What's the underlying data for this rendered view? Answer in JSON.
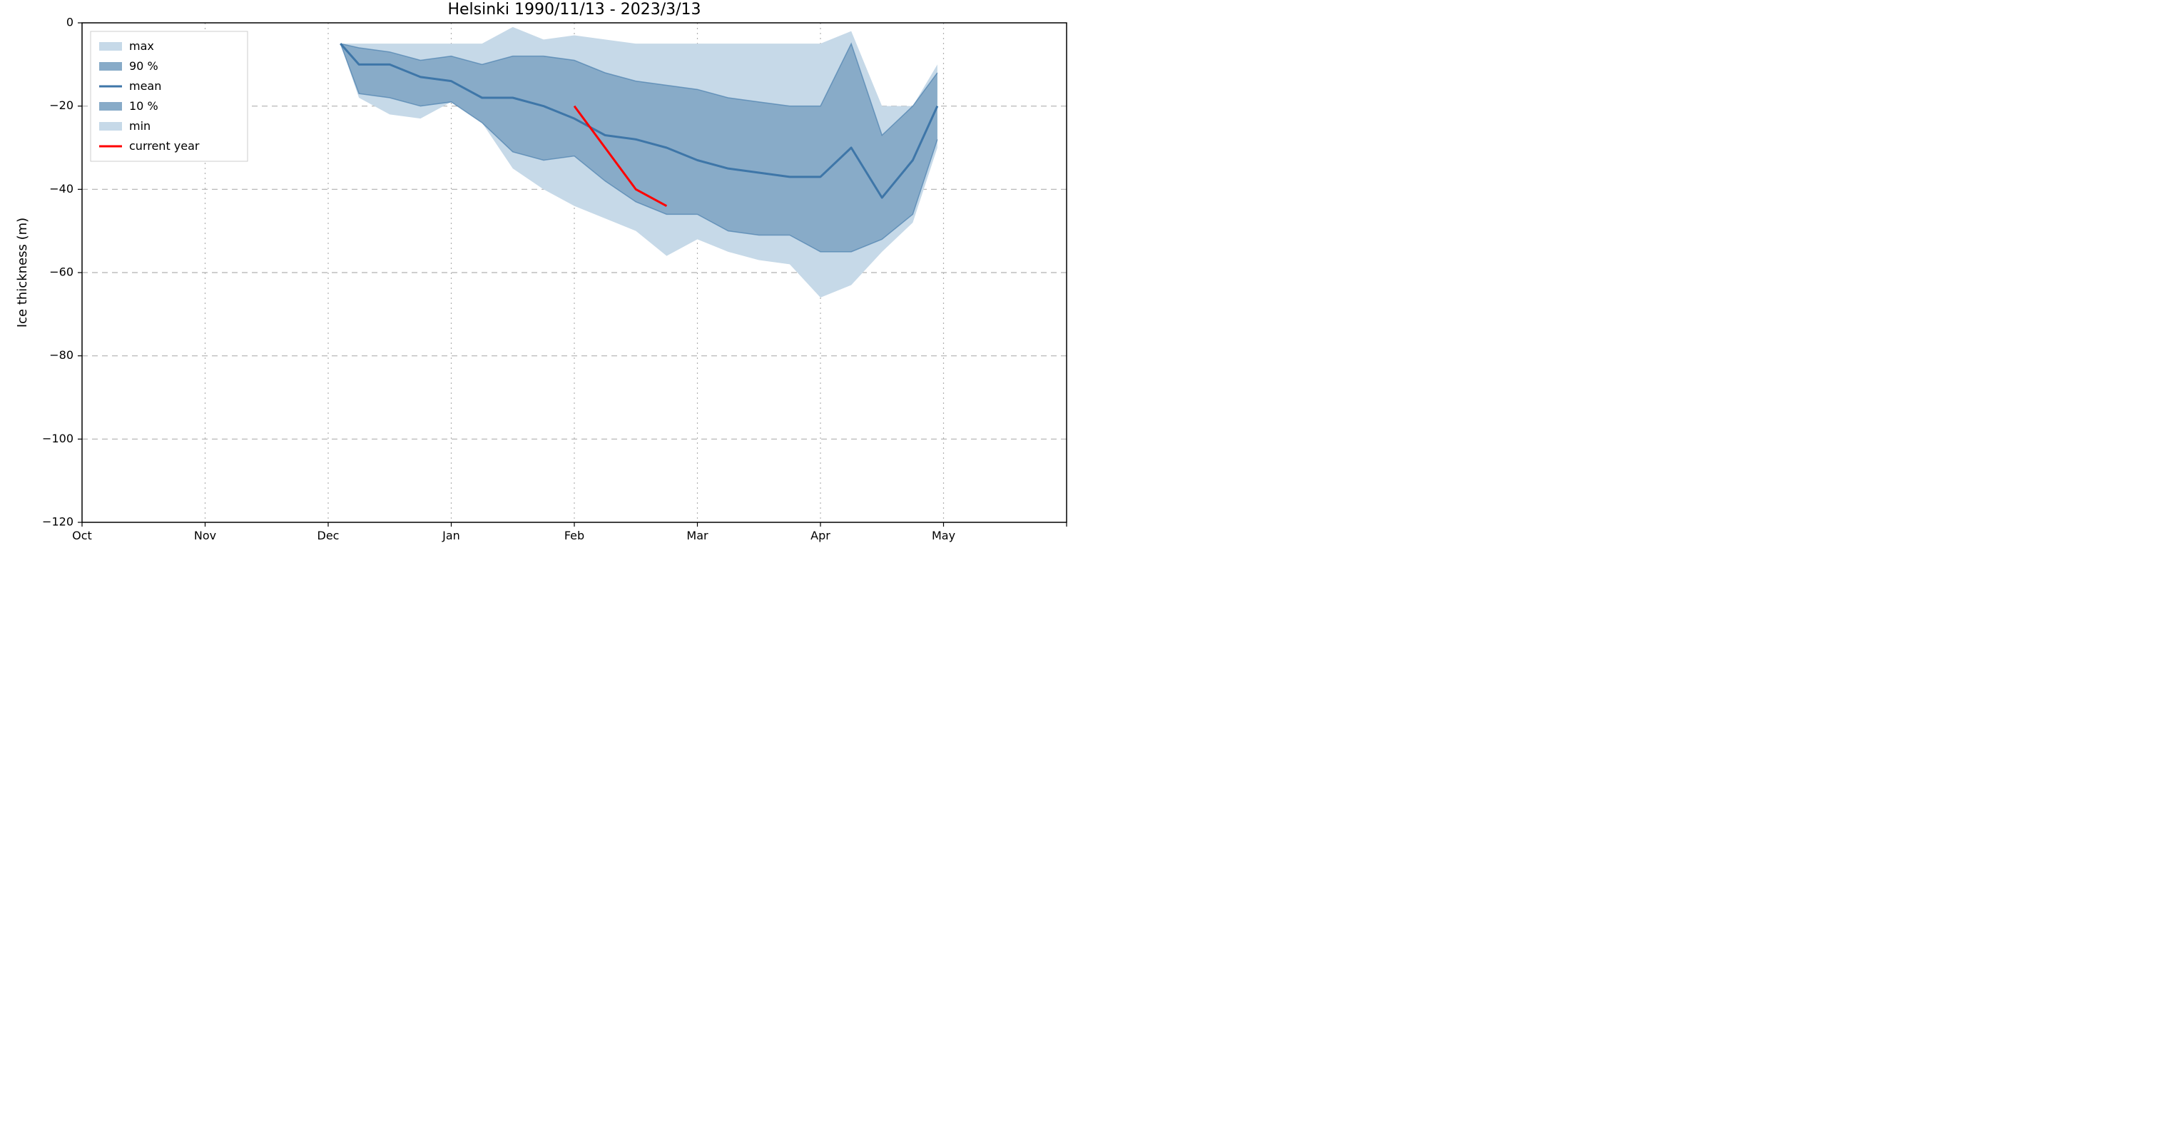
{
  "chart": {
    "type": "area-line",
    "title": "Helsinki 1990/11/13 - 2023/3/13",
    "title_fontsize": 22,
    "ylabel": "Ice thickness (m)",
    "ylabel_fontsize": 18,
    "tick_fontsize": 16,
    "background_color": "#ffffff",
    "axis_color": "#000000",
    "grid_color_dashed": "#b0b0b0",
    "grid_color_dotted": "#b0b0b0",
    "max_fill_color": "#c6d9e8",
    "p90_fill_color": "#88abc8",
    "mean_line_color": "#3e76a8",
    "current_line_color": "#ff0000",
    "mean_line_width": 3,
    "current_line_width": 3,
    "xlim": [
      0,
      8
    ],
    "ylim": [
      -120,
      0
    ],
    "ytick_step": 20,
    "xticks": [
      0,
      1,
      2,
      3,
      4,
      5,
      6,
      7,
      8
    ],
    "xtick_labels": [
      "Oct",
      "Nov",
      "Dec",
      "Jan",
      "Feb",
      "Mar",
      "Apr",
      "May",
      ""
    ],
    "yticks": [
      0,
      -20,
      -40,
      -60,
      -80,
      -100,
      -120
    ],
    "ytick_labels": [
      "0",
      "−20",
      "−40",
      "−60",
      "−80",
      "−100",
      "−120"
    ],
    "series": {
      "x": [
        2.1,
        2.25,
        2.5,
        2.75,
        3.0,
        3.25,
        3.5,
        3.75,
        4.0,
        4.25,
        4.5,
        4.75,
        5.0,
        5.25,
        5.5,
        5.75,
        6.0,
        6.25,
        6.5,
        6.75,
        6.95
      ],
      "max": [
        -5,
        -5,
        -5,
        -5,
        -5,
        -5,
        -1,
        -4,
        -3,
        -4,
        -5,
        -5,
        -5,
        -5,
        -5,
        -5,
        -5,
        -2,
        -20,
        -20,
        -10
      ],
      "p90": [
        -5,
        -6,
        -7,
        -9,
        -8,
        -10,
        -8,
        -8,
        -9,
        -12,
        -14,
        -15,
        -16,
        -18,
        -19,
        -20,
        -20,
        -5,
        -27,
        -20,
        -12
      ],
      "mean": [
        -5,
        -10,
        -10,
        -13,
        -14,
        -18,
        -18,
        -20,
        -23,
        -27,
        -28,
        -30,
        -33,
        -35,
        -36,
        -37,
        -37,
        -30,
        -42,
        -33,
        -20
      ],
      "p10": [
        -5,
        -17,
        -18,
        -20,
        -19,
        -24,
        -31,
        -33,
        -32,
        -38,
        -43,
        -46,
        -46,
        -50,
        -51,
        -51,
        -55,
        -55,
        -52,
        -46,
        -28
      ],
      "min": [
        -5,
        -18,
        -22,
        -23,
        -19,
        -24,
        -35,
        -40,
        -44,
        -47,
        -50,
        -56,
        -52,
        -55,
        -57,
        -58,
        -66,
        -63,
        -55,
        -48,
        -30
      ]
    },
    "current_year": {
      "x": [
        4.0,
        4.5,
        4.75
      ],
      "y": [
        -20,
        -40,
        -44
      ]
    },
    "legend": {
      "items": [
        {
          "label": "max",
          "type": "fill",
          "color": "#c6d9e8"
        },
        {
          "label": "90 %",
          "type": "fill",
          "color": "#88abc8"
        },
        {
          "label": "mean",
          "type": "line",
          "color": "#3e76a8",
          "width": 3
        },
        {
          "label": "10 %",
          "type": "fill",
          "color": "#88abc8"
        },
        {
          "label": "min",
          "type": "fill",
          "color": "#c6d9e8"
        },
        {
          "label": "current year",
          "type": "line",
          "color": "#ff0000",
          "width": 3
        }
      ]
    }
  }
}
